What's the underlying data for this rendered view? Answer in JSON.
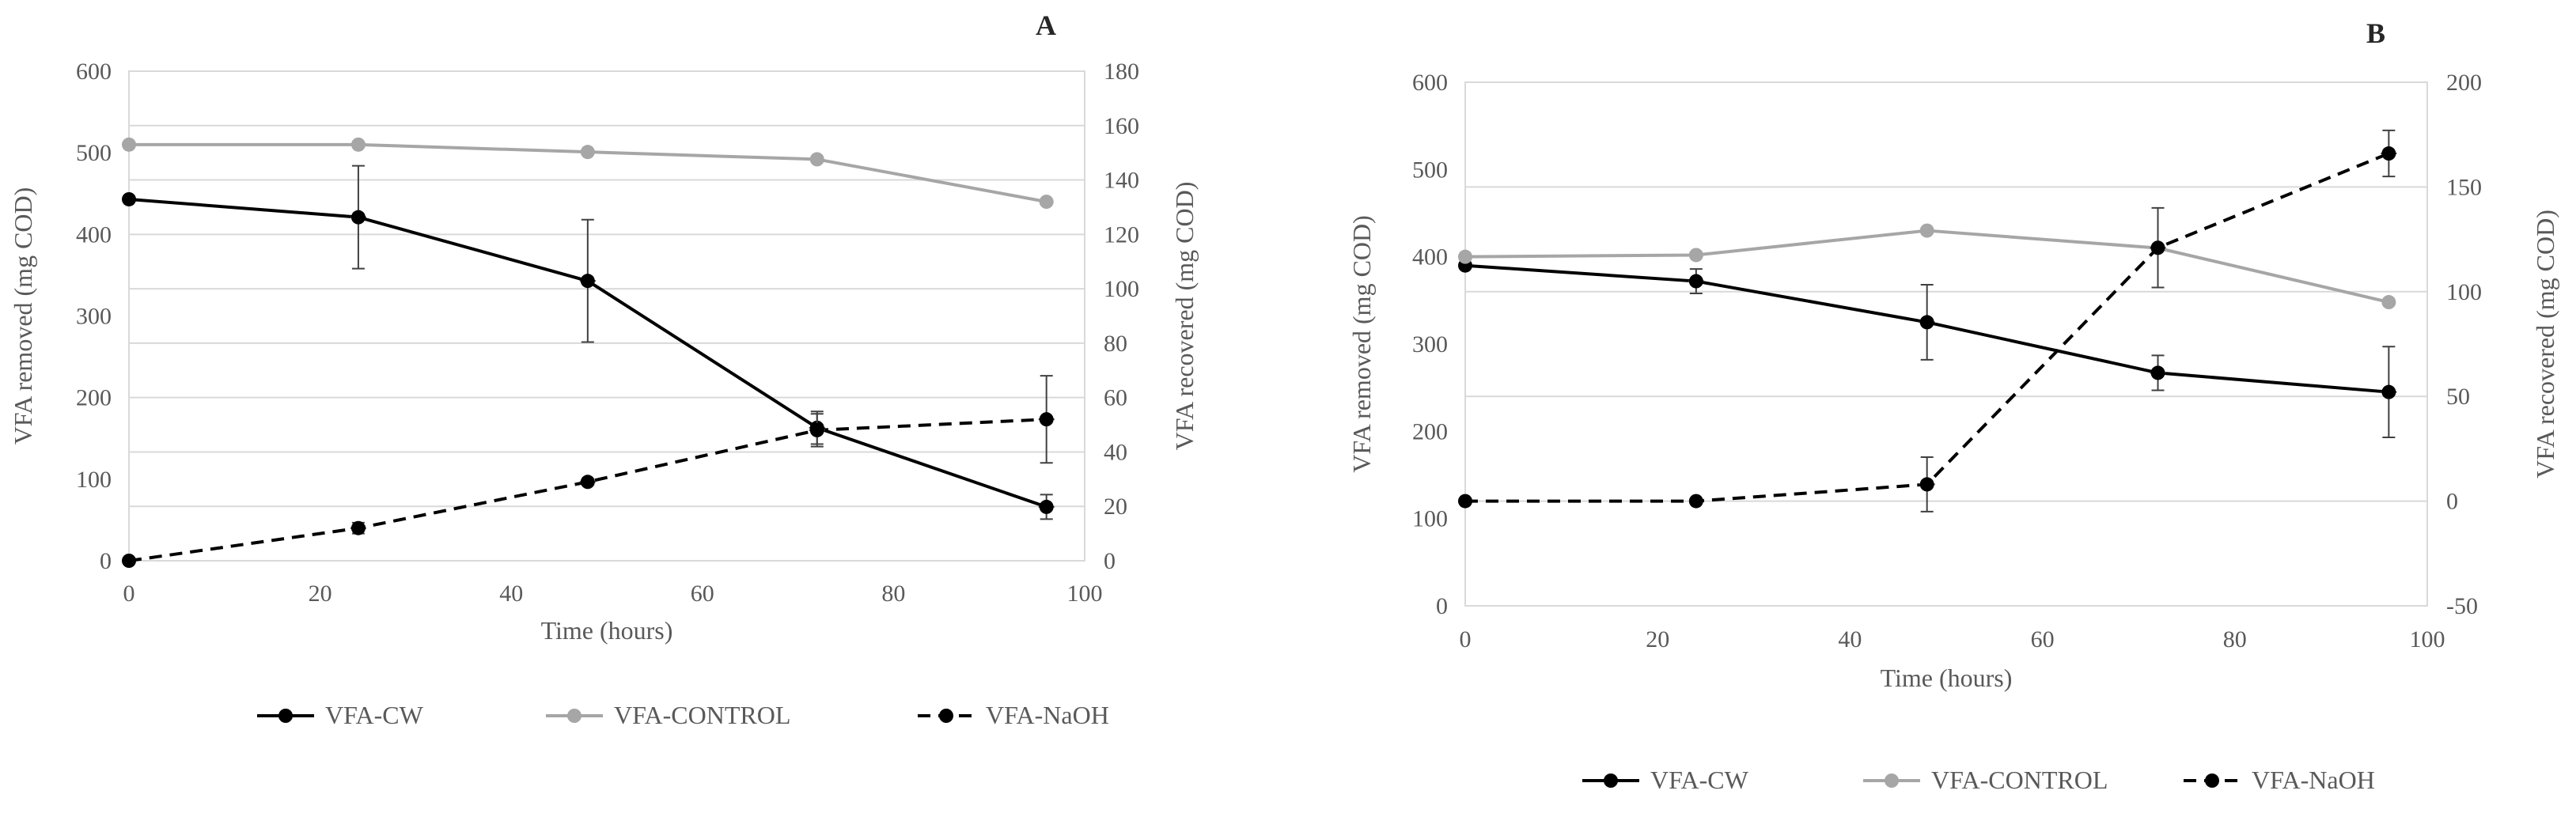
{
  "chart_data": [
    {
      "type": "line",
      "panel_label": "A",
      "xlabel": "Time (hours)",
      "ylabel_left": "VFA removed  (mg COD)",
      "ylabel_right": "VFA recovered  (mg COD)",
      "xlim": [
        0,
        100
      ],
      "x_ticks": [
        "0",
        "20",
        "40",
        "60",
        "80",
        "100"
      ],
      "ylim_left": [
        0,
        600
      ],
      "y_ticks_left": [
        "0",
        "100",
        "200",
        "300",
        "400",
        "500",
        "600"
      ],
      "ylim_right": [
        0,
        180
      ],
      "y_ticks_right": [
        "0",
        "20",
        "40",
        "60",
        "80",
        "100",
        "120",
        "140",
        "160",
        "180"
      ],
      "grid": true,
      "legend_position": "bottom",
      "series": [
        {
          "name": "VFA-CW",
          "axis": "left",
          "color": "#000000",
          "style": "solid",
          "x": [
            0,
            24,
            48,
            72,
            96
          ],
          "values": [
            443,
            421,
            343,
            163,
            66
          ],
          "errors": [
            0,
            63,
            75,
            20,
            15
          ]
        },
        {
          "name": "VFA-CONTROL",
          "axis": "left",
          "color": "#A6A6A6",
          "style": "solid",
          "x": [
            0,
            24,
            48,
            72,
            96
          ],
          "values": [
            510,
            510,
            501,
            492,
            440
          ],
          "errors": [
            0,
            0,
            0,
            0,
            0
          ]
        },
        {
          "name": "VFA-NaOH",
          "axis": "right",
          "color": "#000000",
          "style": "dashed",
          "x": [
            0,
            24,
            48,
            72,
            96
          ],
          "values": [
            0,
            12,
            29,
            48,
            52
          ],
          "errors": [
            0,
            2,
            1,
            6,
            16
          ]
        }
      ]
    },
    {
      "type": "line",
      "panel_label": "B",
      "xlabel": "Time (hours)",
      "ylabel_left": "VFA removed  (mg COD)",
      "ylabel_right": "VFA recovered  (mg COD)",
      "xlim": [
        0,
        100
      ],
      "x_ticks": [
        "0",
        "20",
        "40",
        "60",
        "80",
        "100"
      ],
      "ylim_left": [
        0,
        600
      ],
      "y_ticks_left": [
        "0",
        "100",
        "200",
        "300",
        "400",
        "500",
        "600"
      ],
      "ylim_right": [
        -50,
        200
      ],
      "y_ticks_right": [
        "-50",
        "0",
        "50",
        "100",
        "150",
        "200"
      ],
      "grid": true,
      "legend_position": "bottom",
      "series": [
        {
          "name": "VFA-CW",
          "axis": "left",
          "color": "#000000",
          "style": "solid",
          "x": [
            0,
            24,
            48,
            72,
            96
          ],
          "values": [
            390,
            372,
            325,
            267,
            245
          ],
          "errors": [
            0,
            14,
            43,
            20,
            52
          ]
        },
        {
          "name": "VFA-CONTROL",
          "axis": "left",
          "color": "#A6A6A6",
          "style": "solid",
          "x": [
            0,
            24,
            48,
            72,
            96
          ],
          "values": [
            400,
            402,
            430,
            410,
            348
          ],
          "errors": [
            0,
            0,
            0,
            0,
            0
          ]
        },
        {
          "name": "VFA-NaOH",
          "axis": "right",
          "color": "#000000",
          "style": "dashed",
          "x": [
            0,
            24,
            48,
            72,
            96
          ],
          "values": [
            0,
            0,
            8,
            121,
            166
          ],
          "errors": [
            0,
            0,
            13,
            19,
            11
          ]
        }
      ]
    }
  ]
}
